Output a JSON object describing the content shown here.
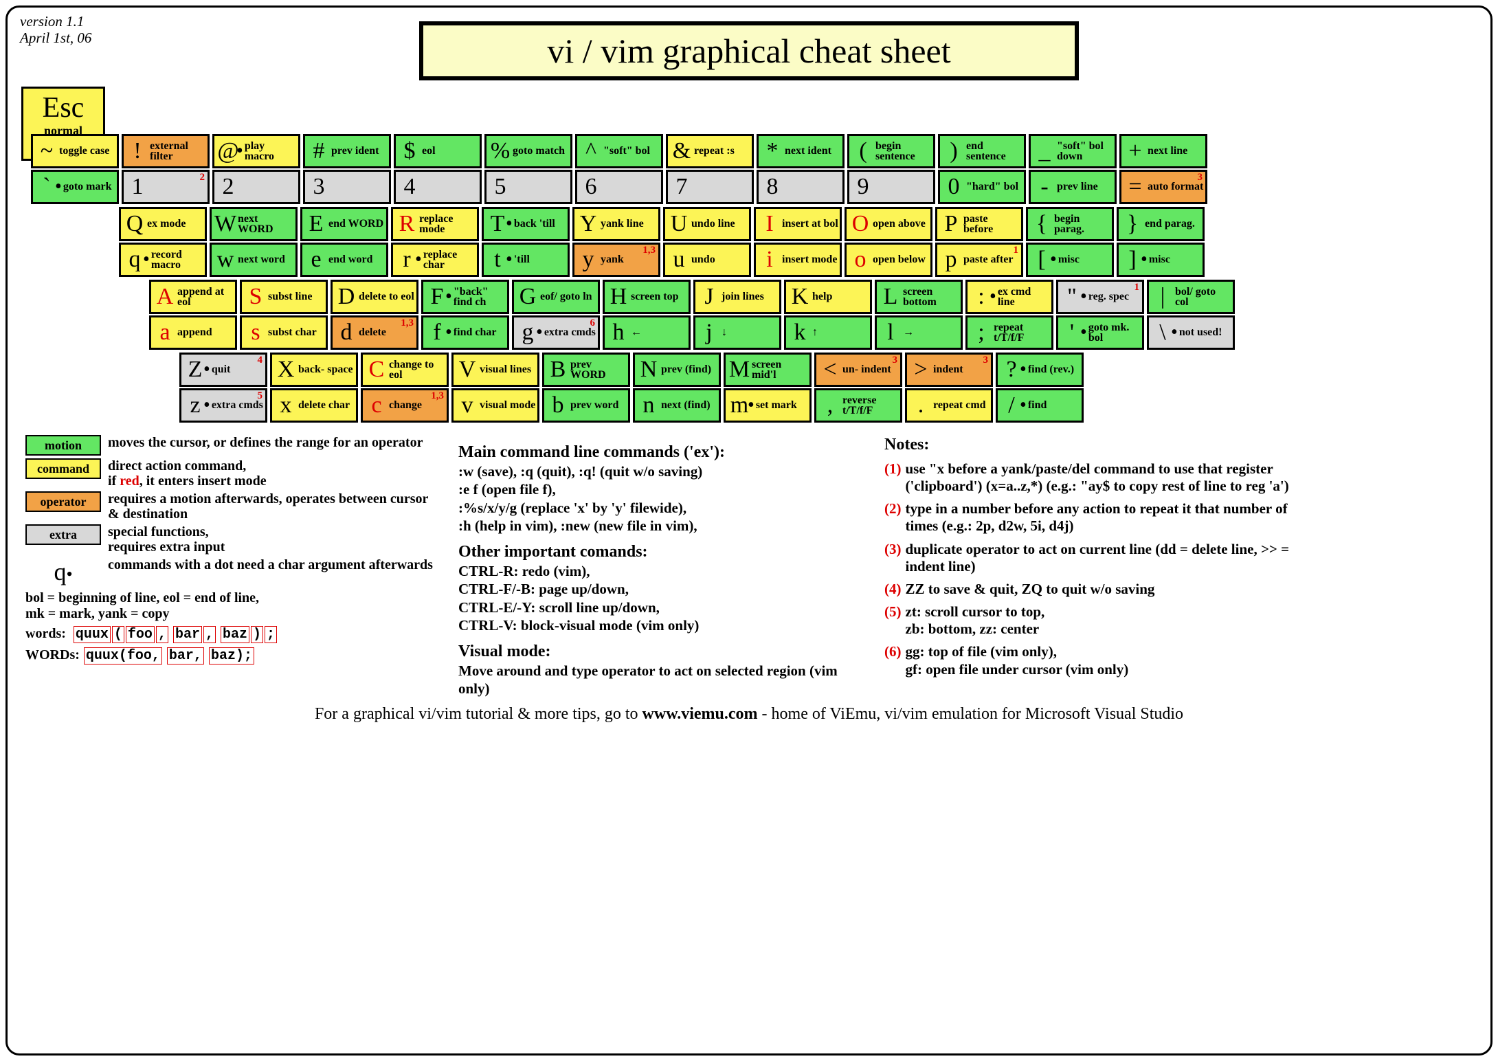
{
  "meta": {
    "version": "version 1.1",
    "date": "April 1st, 06"
  },
  "title": "vi / vim graphical cheat sheet",
  "esc": {
    "char": "Esc",
    "label": "normal\nmode"
  },
  "colors": {
    "motion": "#63e663",
    "command": "#fcf456",
    "operator": "#f2a246",
    "extra": "#d8d8d8",
    "border": "#000000",
    "title_bg": "#fbfcc6",
    "red": "#dd0000"
  },
  "rows": [
    [
      {
        "u": {
          "ch": "~",
          "lbl": "toggle case",
          "c": "command"
        },
        "l": {
          "ch": "`",
          "lbl": "goto mark",
          "c": "motion",
          "dot": true
        }
      },
      {
        "u": {
          "ch": "!",
          "lbl": "external filter",
          "c": "operator"
        },
        "l": {
          "ch": "1",
          "lbl": "",
          "c": "extra",
          "sup": "2"
        }
      },
      {
        "u": {
          "ch": "@",
          "lbl": "play macro",
          "c": "command",
          "dot": true
        },
        "l": {
          "ch": "2",
          "lbl": "",
          "c": "extra"
        }
      },
      {
        "u": {
          "ch": "#",
          "lbl": "prev ident",
          "c": "motion"
        },
        "l": {
          "ch": "3",
          "lbl": "",
          "c": "extra"
        }
      },
      {
        "u": {
          "ch": "$",
          "lbl": "eol",
          "c": "motion"
        },
        "l": {
          "ch": "4",
          "lbl": "",
          "c": "extra"
        }
      },
      {
        "u": {
          "ch": "%",
          "lbl": "goto match",
          "c": "motion"
        },
        "l": {
          "ch": "5",
          "lbl": "",
          "c": "extra"
        }
      },
      {
        "u": {
          "ch": "^",
          "lbl": "\"soft\" bol",
          "c": "motion"
        },
        "l": {
          "ch": "6",
          "lbl": "",
          "c": "extra"
        }
      },
      {
        "u": {
          "ch": "&",
          "lbl": "repeat :s",
          "c": "command"
        },
        "l": {
          "ch": "7",
          "lbl": "",
          "c": "extra"
        }
      },
      {
        "u": {
          "ch": "*",
          "lbl": "next ident",
          "c": "motion"
        },
        "l": {
          "ch": "8",
          "lbl": "",
          "c": "extra"
        }
      },
      {
        "u": {
          "ch": "(",
          "lbl": "begin sentence",
          "c": "motion"
        },
        "l": {
          "ch": "9",
          "lbl": "",
          "c": "extra"
        }
      },
      {
        "u": {
          "ch": ")",
          "lbl": "end sentence",
          "c": "motion"
        },
        "l": {
          "ch": "0",
          "lbl": "\"hard\" bol",
          "c": "motion"
        }
      },
      {
        "u": {
          "ch": "_",
          "lbl": "\"soft\" bol down",
          "c": "motion"
        },
        "l": {
          "ch": "-",
          "lbl": "prev line",
          "c": "motion"
        }
      },
      {
        "u": {
          "ch": "+",
          "lbl": "next line",
          "c": "motion"
        },
        "l": {
          "ch": "=",
          "lbl": "auto format",
          "c": "operator",
          "sup": "3"
        }
      }
    ],
    [
      {
        "u": {
          "ch": "Q",
          "lbl": "ex mode",
          "c": "command"
        },
        "l": {
          "ch": "q",
          "lbl": "record macro",
          "c": "command",
          "dot": true
        }
      },
      {
        "u": {
          "ch": "W",
          "lbl": "next WORD",
          "c": "motion"
        },
        "l": {
          "ch": "w",
          "lbl": "next word",
          "c": "motion"
        }
      },
      {
        "u": {
          "ch": "E",
          "lbl": "end WORD",
          "c": "motion"
        },
        "l": {
          "ch": "e",
          "lbl": "end word",
          "c": "motion"
        }
      },
      {
        "u": {
          "ch": "R",
          "lbl": "replace mode",
          "c": "command",
          "red": true
        },
        "l": {
          "ch": "r",
          "lbl": "replace char",
          "c": "command",
          "dot": true
        }
      },
      {
        "u": {
          "ch": "T",
          "lbl": "back 'till",
          "c": "motion",
          "dot": true
        },
        "l": {
          "ch": "t",
          "lbl": "'till",
          "c": "motion",
          "dot": true
        }
      },
      {
        "u": {
          "ch": "Y",
          "lbl": "yank line",
          "c": "command"
        },
        "l": {
          "ch": "y",
          "lbl": "yank",
          "c": "operator",
          "sup": "1,3"
        }
      },
      {
        "u": {
          "ch": "U",
          "lbl": "undo line",
          "c": "command"
        },
        "l": {
          "ch": "u",
          "lbl": "undo",
          "c": "command"
        }
      },
      {
        "u": {
          "ch": "I",
          "lbl": "insert at bol",
          "c": "command",
          "red": true
        },
        "l": {
          "ch": "i",
          "lbl": "insert mode",
          "c": "command",
          "red": true
        }
      },
      {
        "u": {
          "ch": "O",
          "lbl": "open above",
          "c": "command",
          "red": true
        },
        "l": {
          "ch": "o",
          "lbl": "open below",
          "c": "command",
          "red": true
        }
      },
      {
        "u": {
          "ch": "P",
          "lbl": "paste before",
          "c": "command"
        },
        "l": {
          "ch": "p",
          "lbl": "paste after",
          "c": "command",
          "sup": "1"
        }
      },
      {
        "u": {
          "ch": "{",
          "lbl": "begin parag.",
          "c": "motion"
        },
        "l": {
          "ch": "[",
          "lbl": "misc",
          "c": "motion",
          "dot": true
        }
      },
      {
        "u": {
          "ch": "}",
          "lbl": "end parag.",
          "c": "motion"
        },
        "l": {
          "ch": "]",
          "lbl": "misc",
          "c": "motion",
          "dot": true
        }
      }
    ],
    [
      {
        "u": {
          "ch": "A",
          "lbl": "append at eol",
          "c": "command",
          "red": true
        },
        "l": {
          "ch": "a",
          "lbl": "append",
          "c": "command",
          "red": true
        }
      },
      {
        "u": {
          "ch": "S",
          "lbl": "subst line",
          "c": "command",
          "red": true
        },
        "l": {
          "ch": "s",
          "lbl": "subst char",
          "c": "command",
          "red": true
        }
      },
      {
        "u": {
          "ch": "D",
          "lbl": "delete to eol",
          "c": "command"
        },
        "l": {
          "ch": "d",
          "lbl": "delete",
          "c": "operator",
          "sup": "1,3"
        }
      },
      {
        "u": {
          "ch": "F",
          "lbl": "\"back\" find ch",
          "c": "motion",
          "dot": true
        },
        "l": {
          "ch": "f",
          "lbl": "find char",
          "c": "motion",
          "dot": true
        }
      },
      {
        "u": {
          "ch": "G",
          "lbl": "eof/ goto ln",
          "c": "motion"
        },
        "l": {
          "ch": "g",
          "lbl": "extra cmds",
          "c": "extra",
          "dot": true,
          "sup": "6"
        }
      },
      {
        "u": {
          "ch": "H",
          "lbl": "screen top",
          "c": "motion"
        },
        "l": {
          "ch": "h",
          "lbl": "←",
          "c": "motion",
          "arrow": true
        }
      },
      {
        "u": {
          "ch": "J",
          "lbl": "join lines",
          "c": "command"
        },
        "l": {
          "ch": "j",
          "lbl": "↓",
          "c": "motion",
          "arrow": true
        }
      },
      {
        "u": {
          "ch": "K",
          "lbl": "help",
          "c": "command"
        },
        "l": {
          "ch": "k",
          "lbl": "↑",
          "c": "motion",
          "arrow": true
        }
      },
      {
        "u": {
          "ch": "L",
          "lbl": "screen bottom",
          "c": "motion"
        },
        "l": {
          "ch": "l",
          "lbl": "→",
          "c": "motion",
          "arrow": true
        }
      },
      {
        "u": {
          "ch": ":",
          "lbl": "ex cmd line",
          "c": "command",
          "dot": true
        },
        "l": {
          "ch": ";",
          "lbl": "repeat t/T/f/F",
          "c": "motion"
        }
      },
      {
        "u": {
          "ch": "\"",
          "lbl": "reg. spec",
          "c": "extra",
          "dot": true,
          "sup": "1"
        },
        "l": {
          "ch": "'",
          "lbl": "goto mk. bol",
          "c": "motion",
          "dot": true
        }
      },
      {
        "u": {
          "ch": "|",
          "lbl": "bol/ goto col",
          "c": "motion"
        },
        "l": {
          "ch": "\\",
          "lbl": "not used!",
          "c": "extra",
          "dot": true
        }
      }
    ],
    [
      {
        "u": {
          "ch": "Z",
          "lbl": "quit",
          "c": "extra",
          "dot": true,
          "sup": "4"
        },
        "l": {
          "ch": "z",
          "lbl": "extra cmds",
          "c": "extra",
          "dot": true,
          "sup": "5"
        }
      },
      {
        "u": {
          "ch": "X",
          "lbl": "back- space",
          "c": "command"
        },
        "l": {
          "ch": "x",
          "lbl": "delete char",
          "c": "command"
        }
      },
      {
        "u": {
          "ch": "C",
          "lbl": "change to eol",
          "c": "command",
          "red": true
        },
        "l": {
          "ch": "c",
          "lbl": "change",
          "c": "operator",
          "red": true,
          "sup": "1,3"
        }
      },
      {
        "u": {
          "ch": "V",
          "lbl": "visual lines",
          "c": "command"
        },
        "l": {
          "ch": "v",
          "lbl": "visual mode",
          "c": "command"
        }
      },
      {
        "u": {
          "ch": "B",
          "lbl": "prev WORD",
          "c": "motion"
        },
        "l": {
          "ch": "b",
          "lbl": "prev word",
          "c": "motion"
        }
      },
      {
        "u": {
          "ch": "N",
          "lbl": "prev (find)",
          "c": "motion"
        },
        "l": {
          "ch": "n",
          "lbl": "next (find)",
          "c": "motion"
        }
      },
      {
        "u": {
          "ch": "M",
          "lbl": "screen mid'l",
          "c": "motion"
        },
        "l": {
          "ch": "m",
          "lbl": "set mark",
          "c": "command",
          "dot": true
        }
      },
      {
        "u": {
          "ch": "<",
          "lbl": "un- indent",
          "c": "operator",
          "sup": "3"
        },
        "l": {
          "ch": ",",
          "lbl": "reverse t/T/f/F",
          "c": "motion"
        }
      },
      {
        "u": {
          "ch": ">",
          "lbl": "indent",
          "c": "operator",
          "sup": "3"
        },
        "l": {
          "ch": ".",
          "lbl": "repeat cmd",
          "c": "command"
        }
      },
      {
        "u": {
          "ch": "?",
          "lbl": "find (rev.)",
          "c": "motion",
          "dot": true
        },
        "l": {
          "ch": "/",
          "lbl": "find",
          "c": "motion",
          "dot": true
        }
      }
    ]
  ],
  "legend": [
    {
      "box": "motion",
      "c": "motion",
      "txt": "moves the cursor, or defines the range for an operator"
    },
    {
      "box": "command",
      "c": "command",
      "txt": "direct action command,\nif <red>red</red>, it enters insert mode"
    },
    {
      "box": "operator",
      "c": "operator",
      "txt": "requires a motion afterwards, operates between cursor  & destination"
    },
    {
      "box": "extra",
      "c": "extra",
      "txt": "special functions,\nrequires extra input"
    }
  ],
  "legend_q": "commands with a dot need a char argument afterwards",
  "abbr": "bol = beginning of line, eol = end of line,\nmk = mark, yank = copy",
  "words_label": "words:",
  "words_label2": "WORDs:",
  "main_cmds": {
    "title": "Main command line commands ('ex'):",
    "body": ":w (save), :q (quit), :q! (quit w/o saving)\n:e f (open file f),\n:%s/x/y/g (replace 'x' by 'y' filewide),\n:h (help in vim), :new (new file in vim),"
  },
  "other_cmds": {
    "title": "Other important comands:",
    "body": "CTRL-R: redo (vim),\nCTRL-F/-B: page up/down,\nCTRL-E/-Y: scroll line up/down,\nCTRL-V: block-visual mode (vim only)"
  },
  "visual": {
    "title": "Visual mode:",
    "body": "Move around and type operator to act on selected region (vim only)"
  },
  "notes_title": "Notes:",
  "notes": [
    "use \"x before a yank/paste/del command to use that register ('clipboard') (x=a..z,*) (e.g.: \"ay$ to copy rest of line to reg 'a')",
    "type in a number before any action to repeat it that number of times (e.g.: 2p, d2w, 5i, d4j)",
    "duplicate operator to act on current line (dd = delete line, >> = indent line)",
    "ZZ to save & quit, ZQ to quit w/o saving",
    "zt: scroll cursor to top,\nzb: bottom, zz: center",
    "gg: top of file (vim only),\ngf: open file under cursor (vim only)"
  ],
  "footer": {
    "pre": "For a graphical vi/vim tutorial & more tips, go to   ",
    "url": "www.viemu.com",
    "post": "   - home of ViEmu, vi/vim emulation for Microsoft Visual Studio"
  }
}
